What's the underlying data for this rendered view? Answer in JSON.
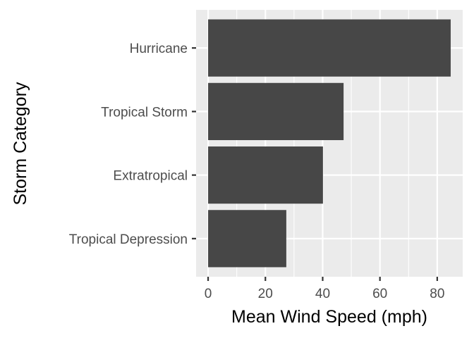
{
  "chart_data": {
    "type": "bar",
    "orientation": "horizontal",
    "categories": [
      "Hurricane",
      "Tropical Storm",
      "Extratropical",
      "Tropical Depression"
    ],
    "values": [
      84.7,
      47.3,
      40.1,
      27.3
    ],
    "xlabel": "Mean Wind Speed (mph)",
    "ylabel": "Storm Category",
    "xlim": [
      -4.2,
      88.9
    ],
    "x_ticks": [
      "0",
      "20",
      "40",
      "60",
      "80"
    ],
    "x_tick_values": [
      0,
      20,
      40,
      60,
      80
    ],
    "grid": true,
    "bar_color": "#474747",
    "panel_color": "#ebebeb",
    "gridline_color": "#ffffff"
  }
}
